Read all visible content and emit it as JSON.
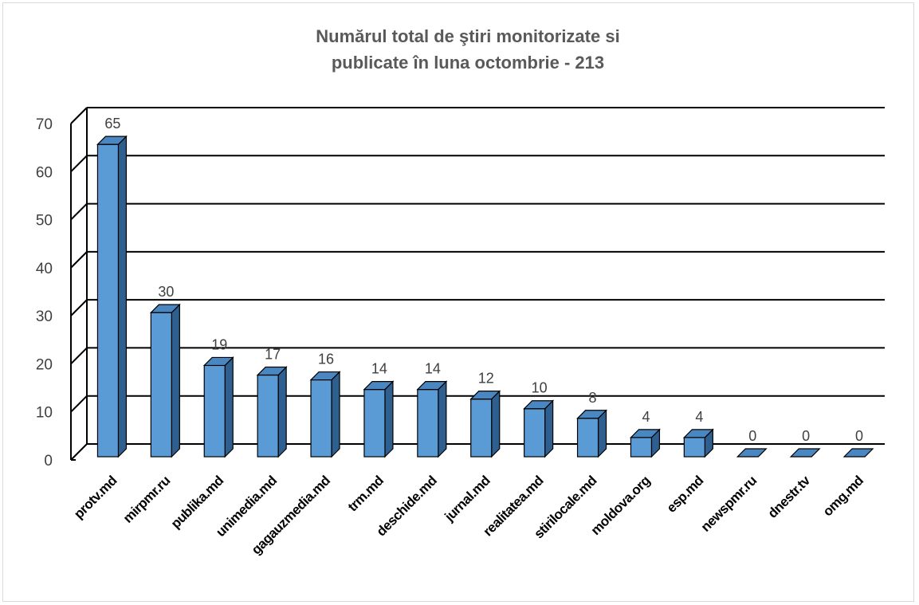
{
  "chart_data": {
    "type": "bar",
    "title_lines": [
      "Numărul total de ştiri monitorizate si",
      "publicate în luna octombrie - 213"
    ],
    "categories": [
      "protv.md",
      "mirpmr.ru",
      "publika.md",
      "unimedia.md",
      "gagauzmedia.md",
      "trm.md",
      "deschide.md",
      "jurnal.md",
      "realitatea.md",
      "stirilocale.md",
      "moldova.org",
      "esp.md",
      "newspmr.ru",
      "dnestr.tv",
      "omg.md"
    ],
    "values": [
      65,
      30,
      19,
      17,
      16,
      14,
      14,
      12,
      10,
      8,
      4,
      4,
      0,
      0,
      0
    ],
    "data_labels": [
      "65",
      "30",
      "19",
      "17",
      "16",
      "14",
      "14",
      "12",
      "10",
      "8",
      "4",
      "4",
      "0",
      "0",
      "0"
    ],
    "y_ticks": [
      "0",
      "10",
      "20",
      "30",
      "40",
      "50",
      "60",
      "70"
    ],
    "ylim": [
      0,
      70
    ],
    "grid": true,
    "style": "3d-column",
    "colors": {
      "bar_front": "#5b9bd5",
      "bar_side": "#2e5f8e",
      "bar_top": "#4a86c0",
      "bar_outline": "#000000",
      "gridline": "#000000",
      "text": "#404040",
      "title": "#595959"
    }
  }
}
